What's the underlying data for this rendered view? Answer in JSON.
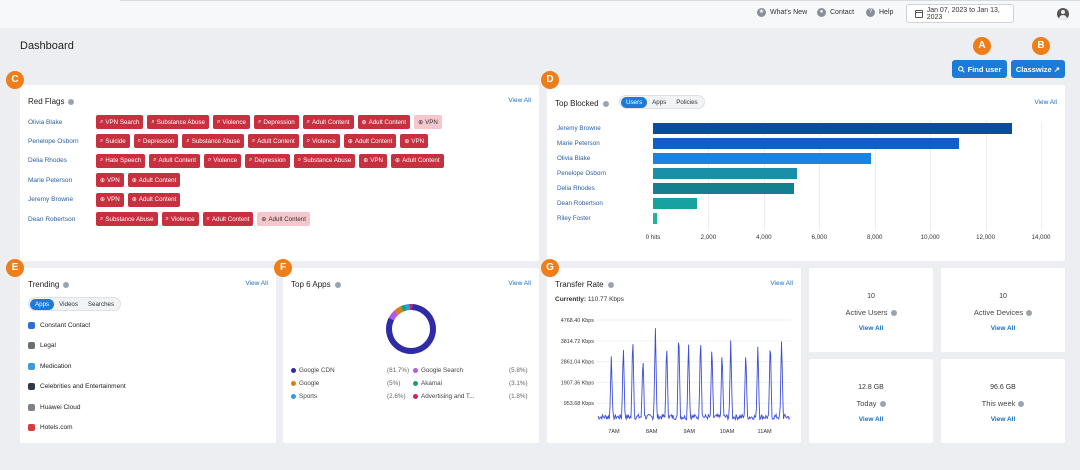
{
  "topbar": {
    "whats_new": "What's New",
    "contact": "Contact",
    "help": "Help",
    "date_range": "Jan 07, 2023 to Jan 13, 2023"
  },
  "page": {
    "title": "Dashboard"
  },
  "actions": {
    "find_user": "Find user",
    "classwize": "Classwize ↗"
  },
  "markers": [
    "A",
    "B",
    "C",
    "D",
    "E",
    "F",
    "G"
  ],
  "red_flags": {
    "title": "Red Flags",
    "view_all": "View All",
    "rows": [
      {
        "name": "Olivia Blake",
        "tags": [
          {
            "label": "VPN Search",
            "icon": "search-icon",
            "style": "dark"
          },
          {
            "label": "Substance Abuse",
            "icon": "search-icon",
            "style": "dark"
          },
          {
            "label": "Violence",
            "icon": "search-icon",
            "style": "dark"
          },
          {
            "label": "Depression",
            "icon": "search-icon",
            "style": "dark"
          },
          {
            "label": "Adult Content",
            "icon": "search-icon",
            "style": "dark"
          },
          {
            "label": "Adult Content",
            "icon": "globe-icon",
            "style": "dark"
          },
          {
            "label": "VPN",
            "icon": "globe-icon",
            "style": "light"
          }
        ]
      },
      {
        "name": "Penelope Osborn",
        "tags": [
          {
            "label": "Suicide",
            "icon": "search-icon",
            "style": "dark"
          },
          {
            "label": "Depression",
            "icon": "search-icon",
            "style": "dark"
          },
          {
            "label": "Substance Abuse",
            "icon": "search-icon",
            "style": "dark"
          },
          {
            "label": "Adult Content",
            "icon": "search-icon",
            "style": "dark"
          },
          {
            "label": "Violence",
            "icon": "search-icon",
            "style": "dark"
          },
          {
            "label": "Adult Content",
            "icon": "globe-icon",
            "style": "dark"
          },
          {
            "label": "VPN",
            "icon": "globe-icon",
            "style": "dark"
          }
        ]
      },
      {
        "name": "Delia Rhodes",
        "tags": [
          {
            "label": "Hate Speech",
            "icon": "search-icon",
            "style": "dark"
          },
          {
            "label": "Adult Content",
            "icon": "search-icon",
            "style": "dark"
          },
          {
            "label": "Violence",
            "icon": "search-icon",
            "style": "dark"
          },
          {
            "label": "Depression",
            "icon": "search-icon",
            "style": "dark"
          },
          {
            "label": "Substance Abuse",
            "icon": "search-icon",
            "style": "dark"
          },
          {
            "label": "VPN",
            "icon": "globe-icon",
            "style": "dark"
          },
          {
            "label": "Adult Content",
            "icon": "globe-icon",
            "style": "dark"
          }
        ]
      },
      {
        "name": "Marie Peterson",
        "tags": [
          {
            "label": "VPN",
            "icon": "globe-icon",
            "style": "dark"
          },
          {
            "label": "Adult Content",
            "icon": "globe-icon",
            "style": "dark"
          }
        ]
      },
      {
        "name": "Jeremy Browne",
        "tags": [
          {
            "label": "VPN",
            "icon": "globe-icon",
            "style": "dark"
          },
          {
            "label": "Adult Content",
            "icon": "globe-icon",
            "style": "dark"
          }
        ]
      },
      {
        "name": "Dean Robertson",
        "tags": [
          {
            "label": "Substance Abuse",
            "icon": "search-icon",
            "style": "dark"
          },
          {
            "label": "Violence",
            "icon": "search-icon",
            "style": "dark"
          },
          {
            "label": "Adult Content",
            "icon": "search-icon",
            "style": "dark"
          },
          {
            "label": "Adult Content",
            "icon": "globe-icon",
            "style": "light"
          }
        ]
      }
    ]
  },
  "top_blocked": {
    "title": "Top Blocked",
    "view_all": "View All",
    "tabs": [
      "Users",
      "Apps",
      "Policies"
    ],
    "active_tab": "Users",
    "xticks": [
      "0 hits",
      "2,000",
      "4,000",
      "6,000",
      "8,000",
      "10,000",
      "12,000",
      "14,000"
    ],
    "xmax": 14000,
    "users": [
      {
        "name": "Jeremy Browne",
        "value": 12950,
        "color": "#0d4aa0"
      },
      {
        "name": "Marie Peterson",
        "value": 11050,
        "color": "#0f5fc4"
      },
      {
        "name": "Olivia Blake",
        "value": 7880,
        "color": "#1c82e0"
      },
      {
        "name": "Penelope Osborn",
        "value": 5200,
        "color": "#1a8fa8"
      },
      {
        "name": "Delia Rhodes",
        "value": 5080,
        "color": "#147f8e"
      },
      {
        "name": "Dean Robertson",
        "value": 1600,
        "color": "#17a2a0"
      },
      {
        "name": "Riley Foster",
        "value": 150,
        "color": "#1fb3a8"
      }
    ]
  },
  "trending": {
    "title": "Trending",
    "view_all": "View All",
    "tabs": [
      "Apps",
      "Videos",
      "Searches"
    ],
    "active_tab": "Apps",
    "items": [
      {
        "label": "Constant Contact",
        "color": "#2f6fd6"
      },
      {
        "label": "Legal",
        "color": "#6b6f76"
      },
      {
        "label": "Medication",
        "color": "#3a9ad9"
      },
      {
        "label": "Celebrities and Entertainment",
        "color": "#333a44"
      },
      {
        "label": "Huawei Cloud",
        "color": "#7d828a"
      },
      {
        "label": "Hotels.com",
        "color": "#d93a3a"
      }
    ]
  },
  "top_apps": {
    "title": "Top 6 Apps",
    "view_all": "View All",
    "chart_data": {
      "type": "pie",
      "donut": true,
      "slices": [
        {
          "label": "Google CDN",
          "pct_label": "(81.7%)",
          "value": 81.7,
          "color": "#2e2aa8"
        },
        {
          "label": "Google Search",
          "pct_label": "(5.8%)",
          "value": 5.8,
          "color": "#b25be0"
        },
        {
          "label": "Google",
          "pct_label": "(5%)",
          "value": 5.0,
          "color": "#e07b1a"
        },
        {
          "label": "Akamai",
          "pct_label": "(3.1%)",
          "value": 3.1,
          "color": "#1a9e7a"
        },
        {
          "label": "Sports",
          "pct_label": "(2.6%)",
          "value": 2.6,
          "color": "#2a9fe0"
        },
        {
          "label": "Advertising and T...",
          "pct_label": "(1.8%)",
          "value": 1.8,
          "color": "#d4205a"
        }
      ]
    }
  },
  "transfer_rate": {
    "title": "Transfer Rate",
    "view_all": "View All",
    "currently_label": "Currently:",
    "currently_value": "110.77 Kbps",
    "chart_data": {
      "type": "line",
      "yticks": [
        "4768.40 Kbps",
        "3814.72 Kbps",
        "2861.04 Kbps",
        "1907.36 Kbps",
        "953.68 Kbps"
      ],
      "ytick_values": [
        4768.4,
        3814.72,
        2861.04,
        1907.36,
        953.68
      ],
      "ylim": [
        0,
        5000
      ],
      "xticks": [
        "7AM",
        "8AM",
        "9AM",
        "10AM",
        "11AM"
      ],
      "xtick_values": [
        7,
        8,
        9,
        10,
        11
      ],
      "xlim": [
        6.55,
        11.7
      ],
      "series": [
        {
          "color": "#3d4fd6",
          "peaks": [
            {
              "x": 6.93,
              "y": 2900
            },
            {
              "x": 7.25,
              "y": 3500
            },
            {
              "x": 7.5,
              "y": 4000
            },
            {
              "x": 7.77,
              "y": 3000
            },
            {
              "x": 8.1,
              "y": 4200
            },
            {
              "x": 8.4,
              "y": 3650
            },
            {
              "x": 8.72,
              "y": 4300
            },
            {
              "x": 8.98,
              "y": 3600
            },
            {
              "x": 9.3,
              "y": 3950
            },
            {
              "x": 9.6,
              "y": 3600
            },
            {
              "x": 9.87,
              "y": 3300
            },
            {
              "x": 10.1,
              "y": 3800
            },
            {
              "x": 10.5,
              "y": 3300
            },
            {
              "x": 10.82,
              "y": 3500
            },
            {
              "x": 11.15,
              "y": 3850
            },
            {
              "x": 11.45,
              "y": 3750
            }
          ],
          "baseline": 200
        }
      ]
    }
  },
  "stats": [
    {
      "value": "10",
      "label": "Active Users",
      "link": "View All"
    },
    {
      "value": "10",
      "label": "Active Devices",
      "link": "View All"
    },
    {
      "value": "12.8 GB",
      "label": "Today",
      "link": "View All"
    },
    {
      "value": "96.6 GB",
      "label": "This week",
      "link": "View All"
    }
  ]
}
